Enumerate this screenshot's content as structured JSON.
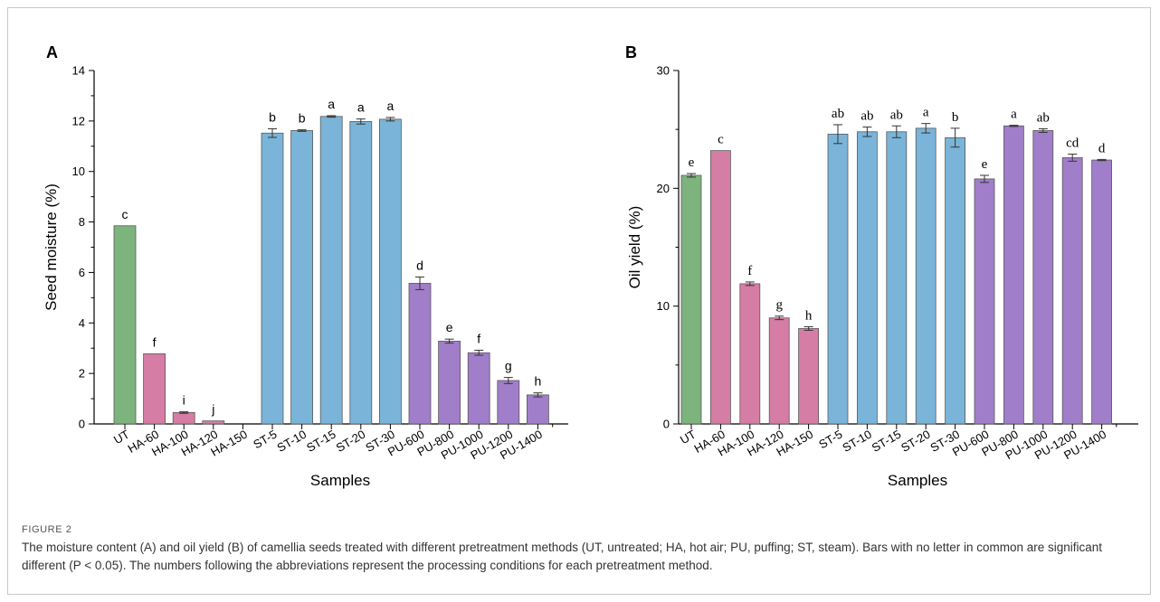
{
  "caption": {
    "label": "FIGURE 2",
    "text": "The moisture content (A) and oil yield (B) of camellia seeds treated with different pretreatment methods (UT, untreated; HA, hot air; PU, puffing; ST, steam). Bars with no letter in common are significant different (P < 0.05). The numbers following the abbreviations represent the processing conditions for each pretreatment method."
  },
  "colors": {
    "UT": "#7db37d",
    "HA": "#d67da5",
    "ST": "#7ab4d8",
    "PU": "#a07ec9"
  },
  "chart_data": [
    {
      "panel": "A",
      "type": "bar",
      "title": "",
      "xlabel": "Samples",
      "ylabel": "Seed moisture (%)",
      "ylim": [
        0,
        14
      ],
      "yticks": [
        0,
        2,
        4,
        6,
        8,
        10,
        12,
        14
      ],
      "grid": false,
      "categories": [
        "UT",
        "HA-60",
        "HA-100",
        "HA-120",
        "HA-150",
        "ST-5",
        "ST-10",
        "ST-15",
        "ST-20",
        "ST-30",
        "PU-600",
        "PU-800",
        "PU-1000",
        "PU-1200",
        "PU-1400"
      ],
      "groups": [
        "UT",
        "HA",
        "HA",
        "HA",
        "HA",
        "ST",
        "ST",
        "ST",
        "ST",
        "ST",
        "PU",
        "PU",
        "PU",
        "PU",
        "PU"
      ],
      "values": [
        7.85,
        2.78,
        0.45,
        0.12,
        0,
        11.52,
        11.62,
        12.18,
        11.98,
        12.07,
        5.57,
        3.28,
        2.82,
        1.72,
        1.15
      ],
      "errors": [
        0,
        0,
        0.03,
        0,
        0,
        0.17,
        0.03,
        0.03,
        0.1,
        0.07,
        0.25,
        0.08,
        0.1,
        0.12,
        0.08
      ],
      "letters": [
        "c",
        "f",
        "i",
        "j",
        "",
        "b",
        "b",
        "a",
        "a",
        "a",
        "d",
        "e",
        "f",
        "g",
        "h"
      ]
    },
    {
      "panel": "B",
      "type": "bar",
      "title": "",
      "xlabel": "Samples",
      "ylabel": "Oil yield (%)",
      "ylim": [
        0,
        30
      ],
      "yticks": [
        0,
        10,
        20,
        30
      ],
      "grid": false,
      "categories": [
        "UT",
        "HA-60",
        "HA-100",
        "HA-120",
        "HA-150",
        "ST-5",
        "ST-10",
        "ST-15",
        "ST-20",
        "ST-30",
        "PU-600",
        "PU-800",
        "PU-1000",
        "PU-1200",
        "PU-1400"
      ],
      "groups": [
        "UT",
        "HA",
        "HA",
        "HA",
        "HA",
        "ST",
        "ST",
        "ST",
        "ST",
        "ST",
        "PU",
        "PU",
        "PU",
        "PU",
        "PU"
      ],
      "values": [
        21.1,
        23.2,
        11.9,
        9.0,
        8.1,
        24.6,
        24.8,
        24.8,
        25.1,
        24.3,
        20.8,
        25.3,
        24.9,
        22.6,
        22.4
      ],
      "errors": [
        0.15,
        0,
        0.15,
        0.15,
        0.15,
        0.8,
        0.4,
        0.5,
        0.4,
        0.8,
        0.3,
        0.05,
        0.15,
        0.3,
        0.05
      ],
      "letters": [
        "e",
        "c",
        "f",
        "g",
        "h",
        "ab",
        "ab",
        "ab",
        "a",
        "b",
        "e",
        "a",
        "ab",
        "cd",
        "d"
      ]
    }
  ]
}
